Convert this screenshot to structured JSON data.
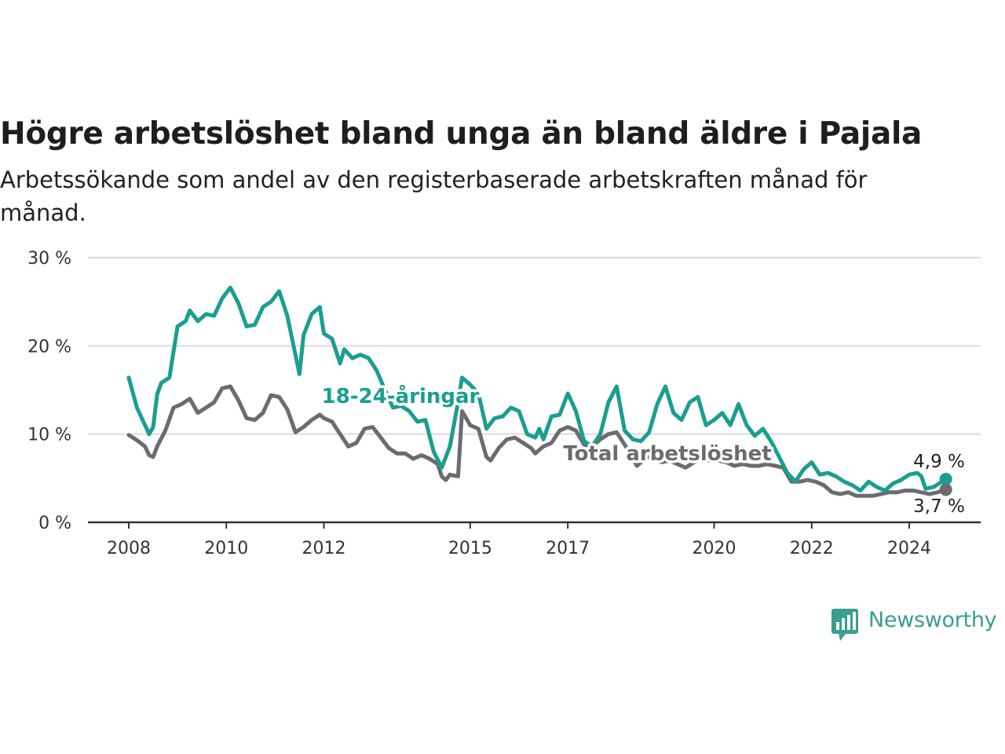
{
  "title": "Högre arbetslöshet bland unga än bland äldre i Pajala",
  "subtitle": "Arbetssökande som andel av den registerbaserade arbetskraften månad för månad.",
  "brand": {
    "name": "Newsworthy",
    "icon": "newsworthy-logo-icon",
    "color": "#3a9e90"
  },
  "chart_data": {
    "type": "line",
    "title": "Högre arbetslöshet bland unga än bland äldre i Pajala",
    "subtitle": "Arbetssökande som andel av den registerbaserade arbetskraften månad för månad.",
    "xlabel": "",
    "ylabel": "",
    "x_range": [
      "2008-01",
      "2024-12"
    ],
    "ylim": [
      0,
      30
    ],
    "y_ticks": [
      0,
      10,
      20,
      30
    ],
    "y_tick_labels": [
      "0 %",
      "10 %",
      "20 %",
      "30 %"
    ],
    "x_ticks": [
      "2008-01",
      "2010-01",
      "2012-01",
      "2015-01",
      "2017-01",
      "2020-01",
      "2022-01",
      "2024-01"
    ],
    "x_tick_labels": [
      "2008",
      "2010",
      "2012",
      "2015",
      "2017",
      "2020",
      "2022",
      "2024"
    ],
    "grid": "horizontal",
    "series": [
      {
        "name": "18-24-åringar",
        "color": "#1a9e90",
        "end_label": "4,9 %",
        "points": [
          [
            "2008-01",
            16.4
          ],
          [
            "2008-03",
            13.0
          ],
          [
            "2008-06",
            10.0
          ],
          [
            "2008-07",
            10.8
          ],
          [
            "2008-08",
            14.5
          ],
          [
            "2008-09",
            15.8
          ],
          [
            "2008-11",
            16.4
          ],
          [
            "2009-01",
            22.2
          ],
          [
            "2009-03",
            22.8
          ],
          [
            "2009-04",
            24.0
          ],
          [
            "2009-06",
            22.8
          ],
          [
            "2009-08",
            23.6
          ],
          [
            "2009-10",
            23.4
          ],
          [
            "2009-12",
            25.4
          ],
          [
            "2010-02",
            26.6
          ],
          [
            "2010-04",
            24.8
          ],
          [
            "2010-06",
            22.2
          ],
          [
            "2010-08",
            22.4
          ],
          [
            "2010-10",
            24.4
          ],
          [
            "2010-12",
            25.0
          ],
          [
            "2011-02",
            26.2
          ],
          [
            "2011-04",
            23.4
          ],
          [
            "2011-07",
            16.8
          ],
          [
            "2011-08",
            21.2
          ],
          [
            "2011-10",
            23.6
          ],
          [
            "2011-12",
            24.4
          ],
          [
            "2012-01",
            21.4
          ],
          [
            "2012-03",
            20.8
          ],
          [
            "2012-05",
            18.0
          ],
          [
            "2012-06",
            19.6
          ],
          [
            "2012-08",
            18.6
          ],
          [
            "2012-10",
            19.0
          ],
          [
            "2012-12",
            18.6
          ],
          [
            "2013-02",
            17.2
          ],
          [
            "2013-04",
            15.0
          ],
          [
            "2013-06",
            13.0
          ],
          [
            "2013-08",
            13.2
          ],
          [
            "2013-10",
            12.6
          ],
          [
            "2013-12",
            11.4
          ],
          [
            "2014-02",
            11.6
          ],
          [
            "2014-04",
            8.0
          ],
          [
            "2014-06",
            6.2
          ],
          [
            "2014-08",
            8.6
          ],
          [
            "2014-10",
            13.6
          ],
          [
            "2014-11",
            16.4
          ],
          [
            "2015-01",
            15.6
          ],
          [
            "2015-03",
            14.6
          ],
          [
            "2015-05",
            10.6
          ],
          [
            "2015-07",
            11.8
          ],
          [
            "2015-09",
            12.0
          ],
          [
            "2015-11",
            13.0
          ],
          [
            "2016-01",
            12.6
          ],
          [
            "2016-03",
            10.0
          ],
          [
            "2016-05",
            9.6
          ],
          [
            "2016-06",
            10.6
          ],
          [
            "2016-07",
            9.4
          ],
          [
            "2016-09",
            12.0
          ],
          [
            "2016-11",
            12.2
          ],
          [
            "2017-01",
            14.6
          ],
          [
            "2017-03",
            12.6
          ],
          [
            "2017-05",
            9.2
          ],
          [
            "2017-07",
            8.6
          ],
          [
            "2017-09",
            10.0
          ],
          [
            "2017-11",
            13.6
          ],
          [
            "2018-01",
            15.4
          ],
          [
            "2018-03",
            10.4
          ],
          [
            "2018-05",
            9.4
          ],
          [
            "2018-07",
            9.2
          ],
          [
            "2018-09",
            10.2
          ],
          [
            "2018-11",
            13.4
          ],
          [
            "2019-01",
            15.4
          ],
          [
            "2019-03",
            12.4
          ],
          [
            "2019-05",
            11.6
          ],
          [
            "2019-07",
            13.6
          ],
          [
            "2019-09",
            14.2
          ],
          [
            "2019-11",
            11.0
          ],
          [
            "2020-01",
            11.6
          ],
          [
            "2020-03",
            12.4
          ],
          [
            "2020-05",
            11.0
          ],
          [
            "2020-07",
            13.4
          ],
          [
            "2020-09",
            11.0
          ],
          [
            "2020-11",
            9.8
          ],
          [
            "2021-01",
            10.6
          ],
          [
            "2021-03",
            9.2
          ],
          [
            "2021-05",
            7.4
          ],
          [
            "2021-07",
            5.6
          ],
          [
            "2021-09",
            4.6
          ],
          [
            "2021-11",
            6.0
          ],
          [
            "2022-01",
            6.8
          ],
          [
            "2022-03",
            5.4
          ],
          [
            "2022-05",
            5.6
          ],
          [
            "2022-07",
            5.2
          ],
          [
            "2022-09",
            4.6
          ],
          [
            "2022-11",
            4.2
          ],
          [
            "2023-01",
            3.6
          ],
          [
            "2023-03",
            4.6
          ],
          [
            "2023-05",
            4.0
          ],
          [
            "2023-07",
            3.6
          ],
          [
            "2023-09",
            4.4
          ],
          [
            "2023-11",
            4.8
          ],
          [
            "2024-01",
            5.4
          ],
          [
            "2024-03",
            5.6
          ],
          [
            "2024-04",
            5.2
          ],
          [
            "2024-05",
            3.8
          ],
          [
            "2024-07",
            4.0
          ],
          [
            "2024-09",
            4.6
          ],
          [
            "2024-10",
            4.9
          ]
        ]
      },
      {
        "name": "Total arbetslöshet",
        "color": "#6b6b70",
        "end_label": "3,7 %",
        "points": [
          [
            "2008-01",
            9.9
          ],
          [
            "2008-03",
            9.3
          ],
          [
            "2008-05",
            8.6
          ],
          [
            "2008-06",
            7.6
          ],
          [
            "2008-07",
            7.4
          ],
          [
            "2008-08",
            8.6
          ],
          [
            "2008-10",
            10.4
          ],
          [
            "2008-12",
            13.0
          ],
          [
            "2009-02",
            13.4
          ],
          [
            "2009-04",
            14.0
          ],
          [
            "2009-06",
            12.4
          ],
          [
            "2009-08",
            13.0
          ],
          [
            "2009-10",
            13.6
          ],
          [
            "2009-12",
            15.2
          ],
          [
            "2010-02",
            15.4
          ],
          [
            "2010-04",
            13.8
          ],
          [
            "2010-06",
            11.8
          ],
          [
            "2010-08",
            11.6
          ],
          [
            "2010-10",
            12.4
          ],
          [
            "2010-12",
            14.4
          ],
          [
            "2011-02",
            14.2
          ],
          [
            "2011-04",
            12.8
          ],
          [
            "2011-06",
            10.2
          ],
          [
            "2011-08",
            10.8
          ],
          [
            "2011-10",
            11.6
          ],
          [
            "2011-12",
            12.2
          ],
          [
            "2012-01",
            11.8
          ],
          [
            "2012-03",
            11.4
          ],
          [
            "2012-05",
            10.0
          ],
          [
            "2012-07",
            8.6
          ],
          [
            "2012-09",
            9.0
          ],
          [
            "2012-11",
            10.6
          ],
          [
            "2013-01",
            10.8
          ],
          [
            "2013-03",
            9.6
          ],
          [
            "2013-05",
            8.4
          ],
          [
            "2013-07",
            7.8
          ],
          [
            "2013-09",
            7.8
          ],
          [
            "2013-11",
            7.2
          ],
          [
            "2014-01",
            7.6
          ],
          [
            "2014-03",
            7.2
          ],
          [
            "2014-05",
            6.6
          ],
          [
            "2014-06",
            5.2
          ],
          [
            "2014-07",
            4.8
          ],
          [
            "2014-08",
            5.4
          ],
          [
            "2014-10",
            5.2
          ],
          [
            "2014-11",
            12.6
          ],
          [
            "2015-01",
            11.0
          ],
          [
            "2015-03",
            10.6
          ],
          [
            "2015-05",
            7.4
          ],
          [
            "2015-06",
            7.0
          ],
          [
            "2015-08",
            8.4
          ],
          [
            "2015-10",
            9.4
          ],
          [
            "2015-12",
            9.6
          ],
          [
            "2016-02",
            9.0
          ],
          [
            "2016-04",
            8.4
          ],
          [
            "2016-05",
            7.8
          ],
          [
            "2016-07",
            8.6
          ],
          [
            "2016-09",
            9.0
          ],
          [
            "2016-11",
            10.4
          ],
          [
            "2017-01",
            10.8
          ],
          [
            "2017-03",
            10.4
          ],
          [
            "2017-05",
            8.8
          ],
          [
            "2017-07",
            8.6
          ],
          [
            "2017-09",
            9.4
          ],
          [
            "2017-11",
            10.0
          ],
          [
            "2018-01",
            10.2
          ],
          [
            "2018-03",
            8.8
          ],
          [
            "2018-06",
            6.4
          ],
          [
            "2018-08",
            7.2
          ],
          [
            "2018-10",
            7.6
          ],
          [
            "2018-12",
            6.8
          ],
          [
            "2019-02",
            7.0
          ],
          [
            "2019-04",
            6.6
          ],
          [
            "2019-06",
            6.2
          ],
          [
            "2019-08",
            6.8
          ],
          [
            "2019-10",
            7.2
          ],
          [
            "2019-12",
            7.0
          ],
          [
            "2020-02",
            7.0
          ],
          [
            "2020-04",
            6.8
          ],
          [
            "2020-06",
            6.4
          ],
          [
            "2020-08",
            6.6
          ],
          [
            "2020-10",
            6.4
          ],
          [
            "2020-12",
            6.4
          ],
          [
            "2021-02",
            6.6
          ],
          [
            "2021-04",
            6.4
          ],
          [
            "2021-06",
            6.2
          ],
          [
            "2021-08",
            4.6
          ],
          [
            "2021-10",
            4.6
          ],
          [
            "2021-12",
            4.8
          ],
          [
            "2022-02",
            4.6
          ],
          [
            "2022-04",
            4.2
          ],
          [
            "2022-06",
            3.4
          ],
          [
            "2022-08",
            3.2
          ],
          [
            "2022-10",
            3.4
          ],
          [
            "2022-12",
            3.0
          ],
          [
            "2023-02",
            3.0
          ],
          [
            "2023-04",
            3.0
          ],
          [
            "2023-06",
            3.2
          ],
          [
            "2023-08",
            3.4
          ],
          [
            "2023-10",
            3.4
          ],
          [
            "2023-12",
            3.6
          ],
          [
            "2024-02",
            3.6
          ],
          [
            "2024-04",
            3.4
          ],
          [
            "2024-06",
            3.2
          ],
          [
            "2024-08",
            3.4
          ],
          [
            "2024-10",
            3.7
          ]
        ]
      }
    ]
  }
}
